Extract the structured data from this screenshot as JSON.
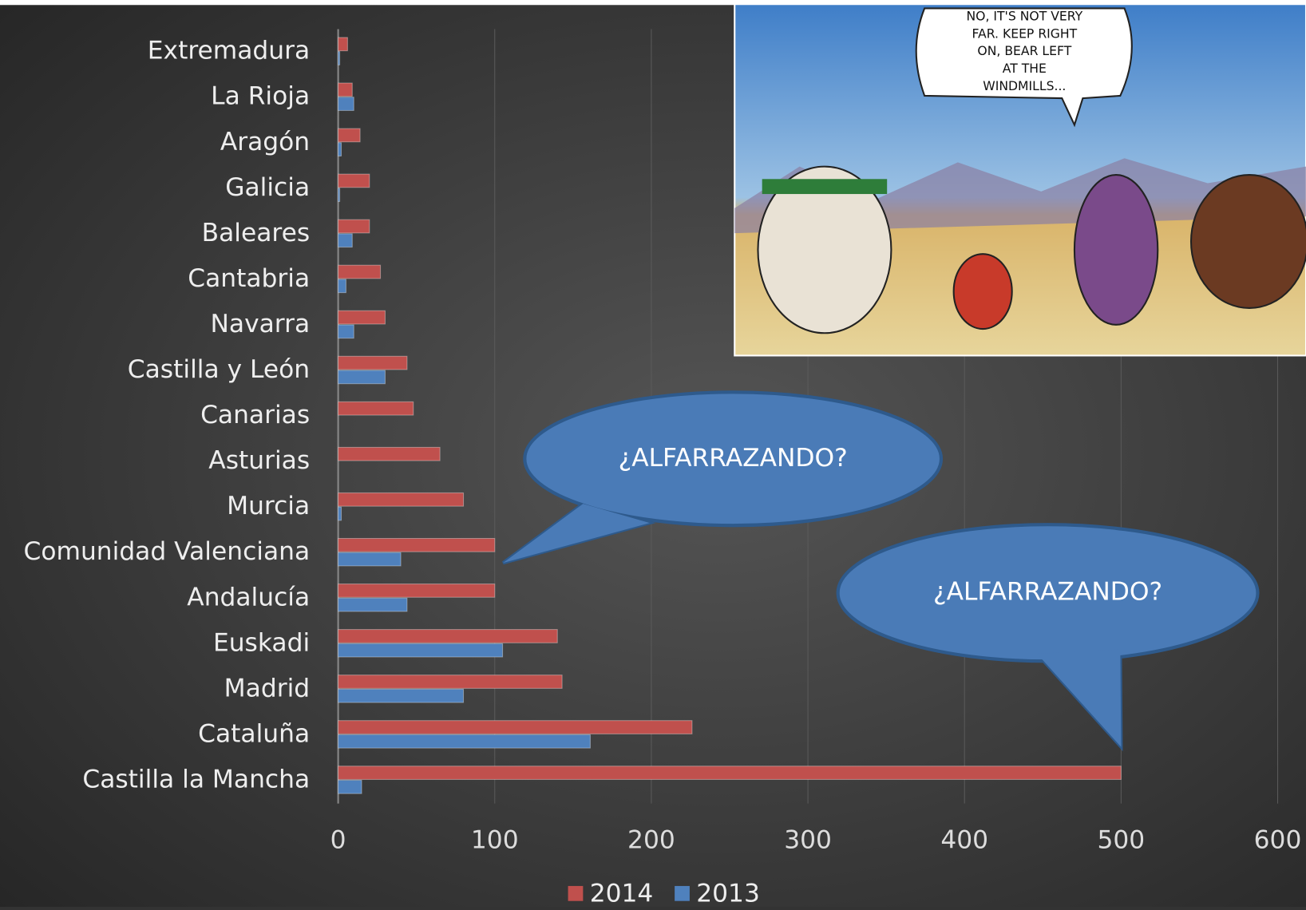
{
  "chart_data": {
    "type": "bar",
    "orientation": "horizontal",
    "categories": [
      "Extremadura",
      "La Rioja",
      "Aragón",
      "Galicia",
      "Baleares",
      "Cantabria",
      "Navarra",
      "Castilla y León",
      "Canarias",
      "Asturias",
      "Murcia",
      "Comunidad Valenciana",
      "Andalucía",
      "Euskadi",
      "Madrid",
      "Cataluña",
      "Castilla la Mancha"
    ],
    "series": [
      {
        "name": "2014",
        "color": "#c0504d",
        "values": [
          6,
          9,
          14,
          20,
          20,
          27,
          30,
          44,
          48,
          65,
          80,
          100,
          100,
          140,
          143,
          226,
          500
        ]
      },
      {
        "name": "2013",
        "color": "#4f81bd",
        "values": [
          1,
          10,
          2,
          1,
          9,
          5,
          10,
          30,
          0,
          0,
          2,
          40,
          44,
          105,
          80,
          161,
          15
        ]
      }
    ],
    "xlim": [
      0,
      600
    ],
    "xticks": [
      0,
      100,
      200,
      300,
      400,
      500,
      600
    ],
    "grid": true,
    "legend": "bottom",
    "annotations": [
      "¿ALFARRAZANDO?",
      "¿ALFARRAZANDO?"
    ],
    "inset_text": [
      "NO, IT'S NOT VERY",
      "FAR. KEEP RIGHT",
      "ON, BEAR LEFT",
      "AT THE",
      "WINDMILLS..."
    ]
  }
}
